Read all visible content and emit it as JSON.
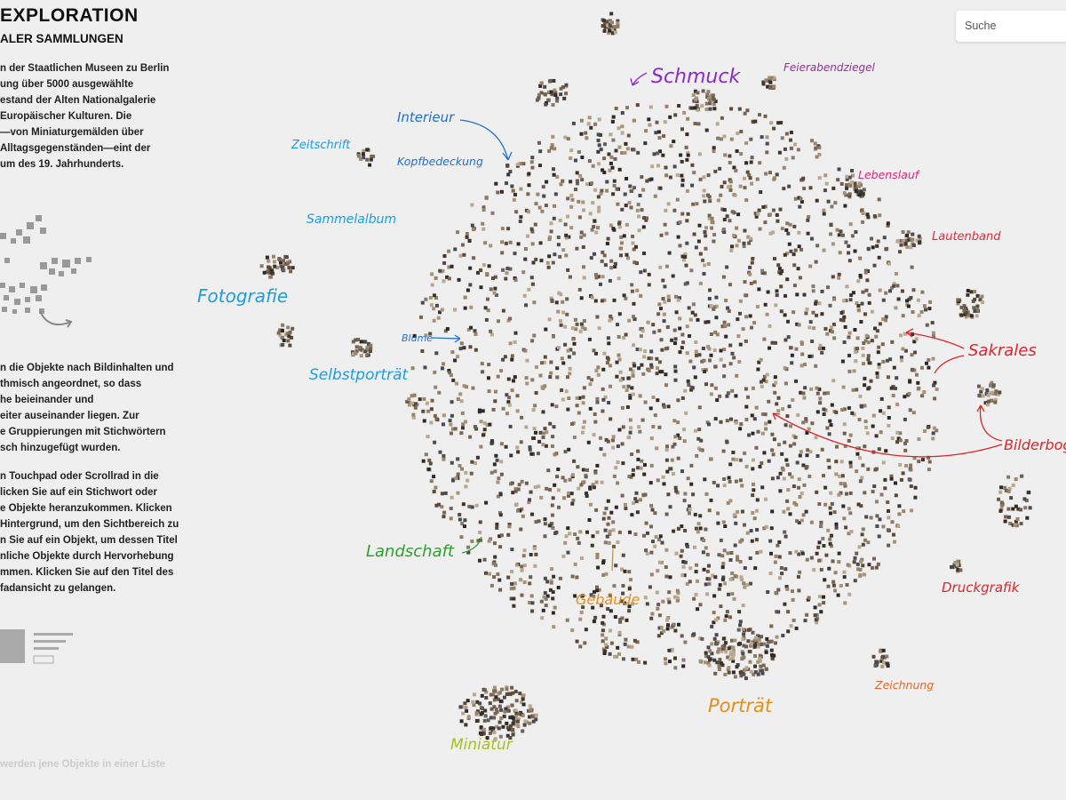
{
  "header": {
    "title": "EXPLORATION",
    "subtitle": "ALER SAMMLUNGEN"
  },
  "intro": [
    "n der Staatlichen Museen zu Berlin",
    "ung über 5000 ausgewählte",
    "estand der Alten Nationalgalerie",
    "Europäischer Kulturen. Die",
    "—von Miniaturgemälden über",
    "Alltagsgegenständen—eint der",
    "um des 19. Jahrhunderts."
  ],
  "method": [
    "n die Objekte nach Bildinhalten und",
    "thmisch angeordnet, so dass",
    "he beieinander und",
    "eiter auseinander liegen. Zur",
    "e Gruppierungen mit Stichwörtern",
    "sch hinzugefügt wurden."
  ],
  "usage": [
    "n Touchpad oder Scrollrad in die",
    "licken Sie auf ein Stichwort oder",
    "e Objekte heranzukommen. Klicken",
    "Hintergrund, um den Sichtbereich zu",
    "n Sie auf ein Objekt, um dessen Titel",
    "nliche Objekte durch Hervorhebung",
    "mmen. Klicken Sie auf den Titel des",
    "fadansicht zu gelangen."
  ],
  "footer_note": "werden jene Objekte in einer Liste",
  "search": {
    "placeholder": "Suche"
  },
  "labels": [
    "Schmuck",
    "Feierabendziegel",
    "Interieur",
    "Kopfbedeckung",
    "Zeitschrift",
    "Lebenslauf",
    "Sammelalbum",
    "Lautenband",
    "Fotografie",
    "Sakrales",
    "Blume",
    "Selbstporträt",
    "Bilderbog",
    "Landschaft",
    "Gebäude",
    "Druckgrafik",
    "Zeichnung",
    "Porträt",
    "Miniatur"
  ]
}
